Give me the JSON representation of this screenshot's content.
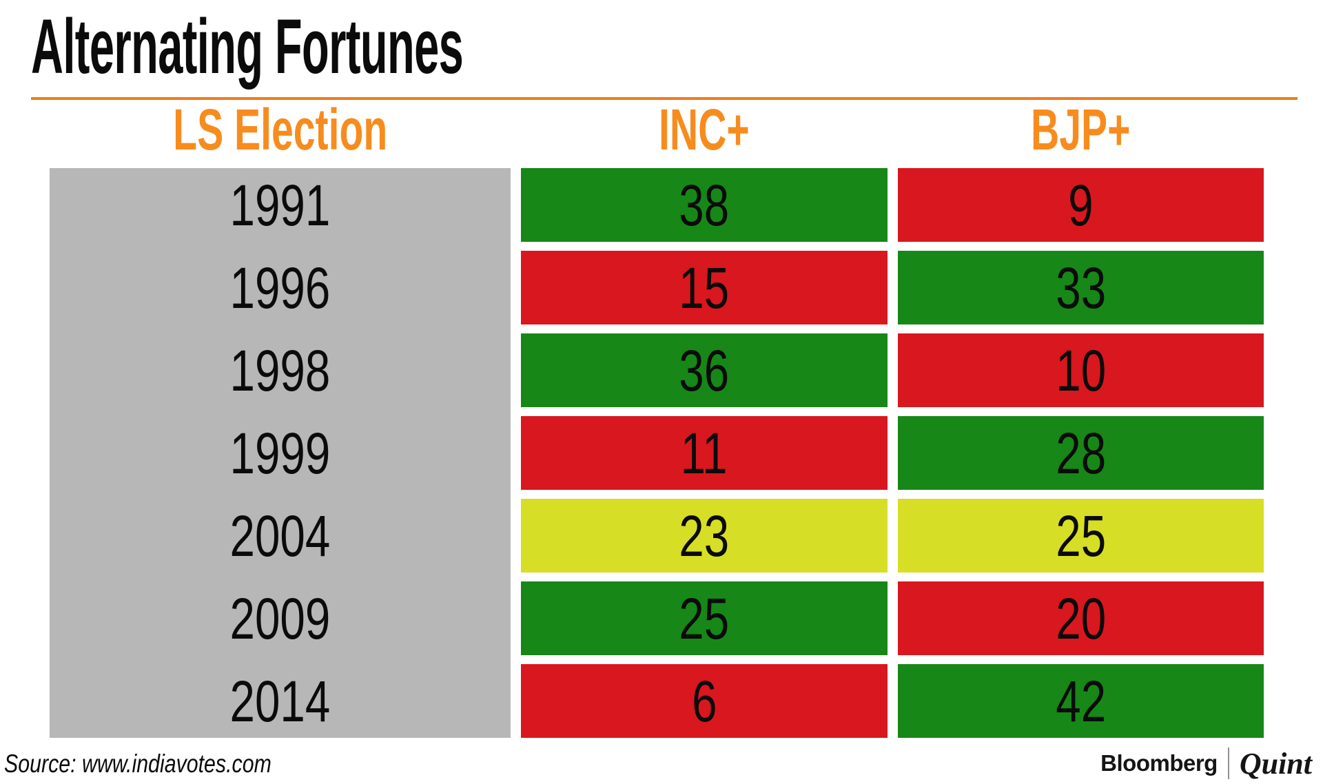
{
  "title": "Alternating Fortunes",
  "columns": [
    {
      "label": "LS Election"
    },
    {
      "label": "INC+"
    },
    {
      "label": "BJP+"
    }
  ],
  "rows": [
    {
      "year": "1991",
      "inc": "38",
      "inc_color": "green",
      "bjp": "9",
      "bjp_color": "red"
    },
    {
      "year": "1996",
      "inc": "15",
      "inc_color": "red",
      "bjp": "33",
      "bjp_color": "green"
    },
    {
      "year": "1998",
      "inc": "36",
      "inc_color": "green",
      "bjp": "10",
      "bjp_color": "red"
    },
    {
      "year": "1999",
      "inc": "11",
      "inc_color": "red",
      "bjp": "28",
      "bjp_color": "green"
    },
    {
      "year": "2004",
      "inc": "23",
      "inc_color": "yellow",
      "bjp": "25",
      "bjp_color": "yellow"
    },
    {
      "year": "2009",
      "inc": "25",
      "inc_color": "green",
      "bjp": "20",
      "bjp_color": "red"
    },
    {
      "year": "2014",
      "inc": "6",
      "inc_color": "red",
      "bjp": "42",
      "bjp_color": "green"
    }
  ],
  "footer": {
    "source": "Source: www.indiavotes.com",
    "brand_primary": "Bloomberg",
    "brand_secondary": "Quint"
  },
  "colors": {
    "green": "#178717",
    "red": "#d9171e",
    "yellow": "#d6de26",
    "gray": "#b7b7b7",
    "orange": "#f78c1e",
    "rule-orange": "#ef7b1e",
    "ink": "#0b0b0b"
  },
  "chart_data": {
    "type": "table",
    "title": "Alternating Fortunes",
    "columns": [
      "LS Election",
      "INC+",
      "BJP+"
    ],
    "categories": [
      "1991",
      "1996",
      "1998",
      "1999",
      "2004",
      "2009",
      "2014"
    ],
    "series": [
      {
        "name": "INC+",
        "values": [
          38,
          15,
          36,
          11,
          23,
          25,
          6
        ],
        "cell_colors": [
          "green",
          "red",
          "green",
          "red",
          "yellow",
          "green",
          "red"
        ]
      },
      {
        "name": "BJP+",
        "values": [
          9,
          33,
          10,
          28,
          25,
          20,
          42
        ],
        "cell_colors": [
          "red",
          "green",
          "red",
          "green",
          "yellow",
          "red",
          "green"
        ]
      }
    ],
    "source": "Source: www.indiavotes.com",
    "layout": "colored table, green = higher tally, red = lower tally, yellow = near-tie (2004)"
  }
}
